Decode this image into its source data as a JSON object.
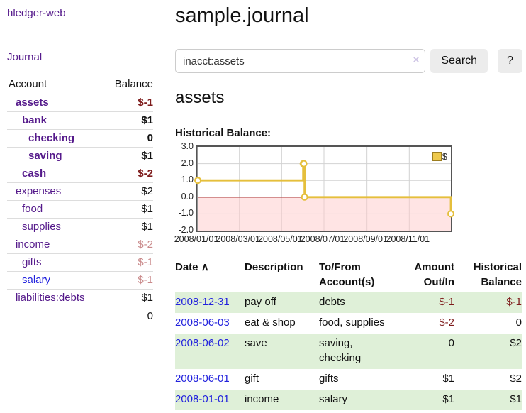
{
  "sidebar": {
    "brand": "hledger-web",
    "journal_link": "Journal",
    "accounts": {
      "col_account": "Account",
      "col_balance": "Balance",
      "rows": [
        {
          "name": "assets",
          "depth": 1,
          "matched": true,
          "balance": "$-1",
          "neg": "dark"
        },
        {
          "name": "bank",
          "depth": 2,
          "matched": true,
          "balance": "$1",
          "neg": ""
        },
        {
          "name": "checking",
          "depth": 3,
          "matched": true,
          "balance": "0",
          "neg": ""
        },
        {
          "name": "saving",
          "depth": 3,
          "matched": true,
          "balance": "$1",
          "neg": ""
        },
        {
          "name": "cash",
          "depth": 2,
          "matched": true,
          "balance": "$-2",
          "neg": "dark"
        },
        {
          "name": "expenses",
          "depth": 1,
          "matched": false,
          "balance": "$2",
          "neg": ""
        },
        {
          "name": "food",
          "depth": 2,
          "matched": false,
          "balance": "$1",
          "neg": ""
        },
        {
          "name": "supplies",
          "depth": 2,
          "matched": false,
          "balance": "$1",
          "neg": ""
        },
        {
          "name": "income",
          "depth": 1,
          "matched": false,
          "balance": "$-2",
          "neg": "soft"
        },
        {
          "name": "gifts",
          "depth": 2,
          "matched": false,
          "balance": "$-1",
          "neg": "soft"
        },
        {
          "name": "salary",
          "depth": 2,
          "matched": false,
          "balance": "$-1",
          "neg": "soft",
          "unvisited": true
        },
        {
          "name": "liabilities:debts",
          "depth": 1,
          "matched": false,
          "balance": "$1",
          "neg": ""
        }
      ],
      "total": "0"
    }
  },
  "main": {
    "title": "sample.journal",
    "search": {
      "value": "inacct:assets",
      "clear_icon": "×",
      "search_button": "Search",
      "help_button": "?"
    },
    "account_heading": "assets",
    "chart_title": "Historical Balance:"
  },
  "chart_data": {
    "type": "line",
    "step": true,
    "title": "Historical Balance",
    "series": [
      {
        "name": "$",
        "points": [
          [
            "2008-01-01",
            1
          ],
          [
            "2008-06-01",
            2
          ],
          [
            "2008-06-02",
            2
          ],
          [
            "2008-06-03",
            0
          ],
          [
            "2008-12-31",
            -1
          ]
        ]
      }
    ],
    "x_ticks": [
      "2008/01/01",
      "2008/03/01",
      "2008/05/01",
      "2008/07/01",
      "2008/09/01",
      "2008/11/01"
    ],
    "y_ticks": [
      "3.0",
      "2.0",
      "1.0",
      "0.0",
      "-1.0",
      "-2.0"
    ],
    "ylim": [
      -2,
      3
    ],
    "x_range": [
      "2008-01-01",
      "2008-12-31"
    ],
    "grid": true,
    "legend": {
      "label": "$",
      "position": "top-right"
    },
    "colors": {
      "line": "#e5bf3c",
      "marker_fill": "#ffffff",
      "negative_region": "#ffc9c9",
      "zero_line": "#8b0000",
      "grid": "#d2d2d2",
      "border": "#555555"
    }
  },
  "register_table": {
    "headers": {
      "date": "Date",
      "sort_indicator": "∧",
      "description": "Description",
      "accounts": "To/From Account(s)",
      "amount": "Amount Out/In",
      "balance": "Historical Balance"
    },
    "rows": [
      {
        "date": "2008-12-31",
        "description": "pay off",
        "accounts": "debts",
        "amount": "$-1",
        "balance": "$-1"
      },
      {
        "date": "2008-06-03",
        "description": "eat & shop",
        "accounts": "food, supplies",
        "amount": "$-2",
        "balance": "0"
      },
      {
        "date": "2008-06-02",
        "description": "save",
        "accounts": "saving, checking",
        "amount": "0",
        "balance": "$2"
      },
      {
        "date": "2008-06-01",
        "description": "gift",
        "accounts": "gifts",
        "amount": "$1",
        "balance": "$2"
      },
      {
        "date": "2008-01-01",
        "description": "income",
        "accounts": "salary",
        "amount": "$1",
        "balance": "$1"
      }
    ]
  }
}
